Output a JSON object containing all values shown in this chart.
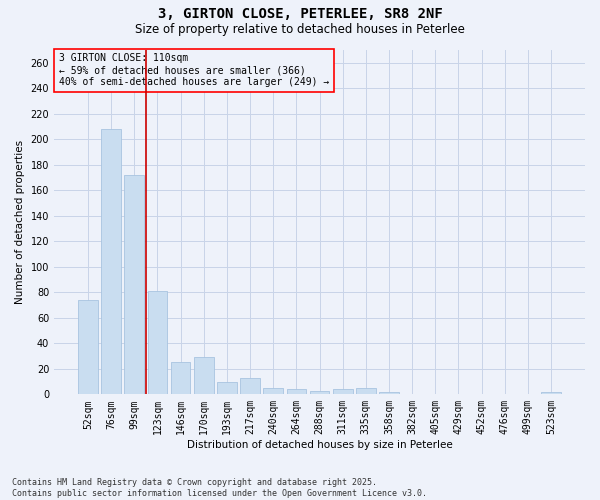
{
  "title": "3, GIRTON CLOSE, PETERLEE, SR8 2NF",
  "subtitle": "Size of property relative to detached houses in Peterlee",
  "xlabel": "Distribution of detached houses by size in Peterlee",
  "ylabel": "Number of detached properties",
  "bar_color": "#c9ddf0",
  "bar_edgecolor": "#a8c4e0",
  "grid_color": "#c8d4e8",
  "background_color": "#eef2fa",
  "vline_color": "#cc0000",
  "vline_x_index": 2,
  "categories": [
    "52sqm",
    "76sqm",
    "99sqm",
    "123sqm",
    "146sqm",
    "170sqm",
    "193sqm",
    "217sqm",
    "240sqm",
    "264sqm",
    "288sqm",
    "311sqm",
    "335sqm",
    "358sqm",
    "382sqm",
    "405sqm",
    "429sqm",
    "452sqm",
    "476sqm",
    "499sqm",
    "523sqm"
  ],
  "values": [
    74,
    208,
    172,
    81,
    25,
    29,
    10,
    13,
    5,
    4,
    3,
    4,
    5,
    2,
    0,
    0,
    0,
    0,
    0,
    0,
    2
  ],
  "ylim": [
    0,
    270
  ],
  "yticks": [
    0,
    20,
    40,
    60,
    80,
    100,
    120,
    140,
    160,
    180,
    200,
    220,
    240,
    260
  ],
  "annotation_title": "3 GIRTON CLOSE: 110sqm",
  "annotation_line1": "← 59% of detached houses are smaller (366)",
  "annotation_line2": "40% of semi-detached houses are larger (249) →",
  "annotation_box_color": "red",
  "footer_line1": "Contains HM Land Registry data © Crown copyright and database right 2025.",
  "footer_line2": "Contains public sector information licensed under the Open Government Licence v3.0.",
  "title_fontsize": 10,
  "subtitle_fontsize": 8.5,
  "axis_label_fontsize": 7.5,
  "tick_fontsize": 7,
  "annotation_fontsize": 7,
  "footer_fontsize": 6
}
